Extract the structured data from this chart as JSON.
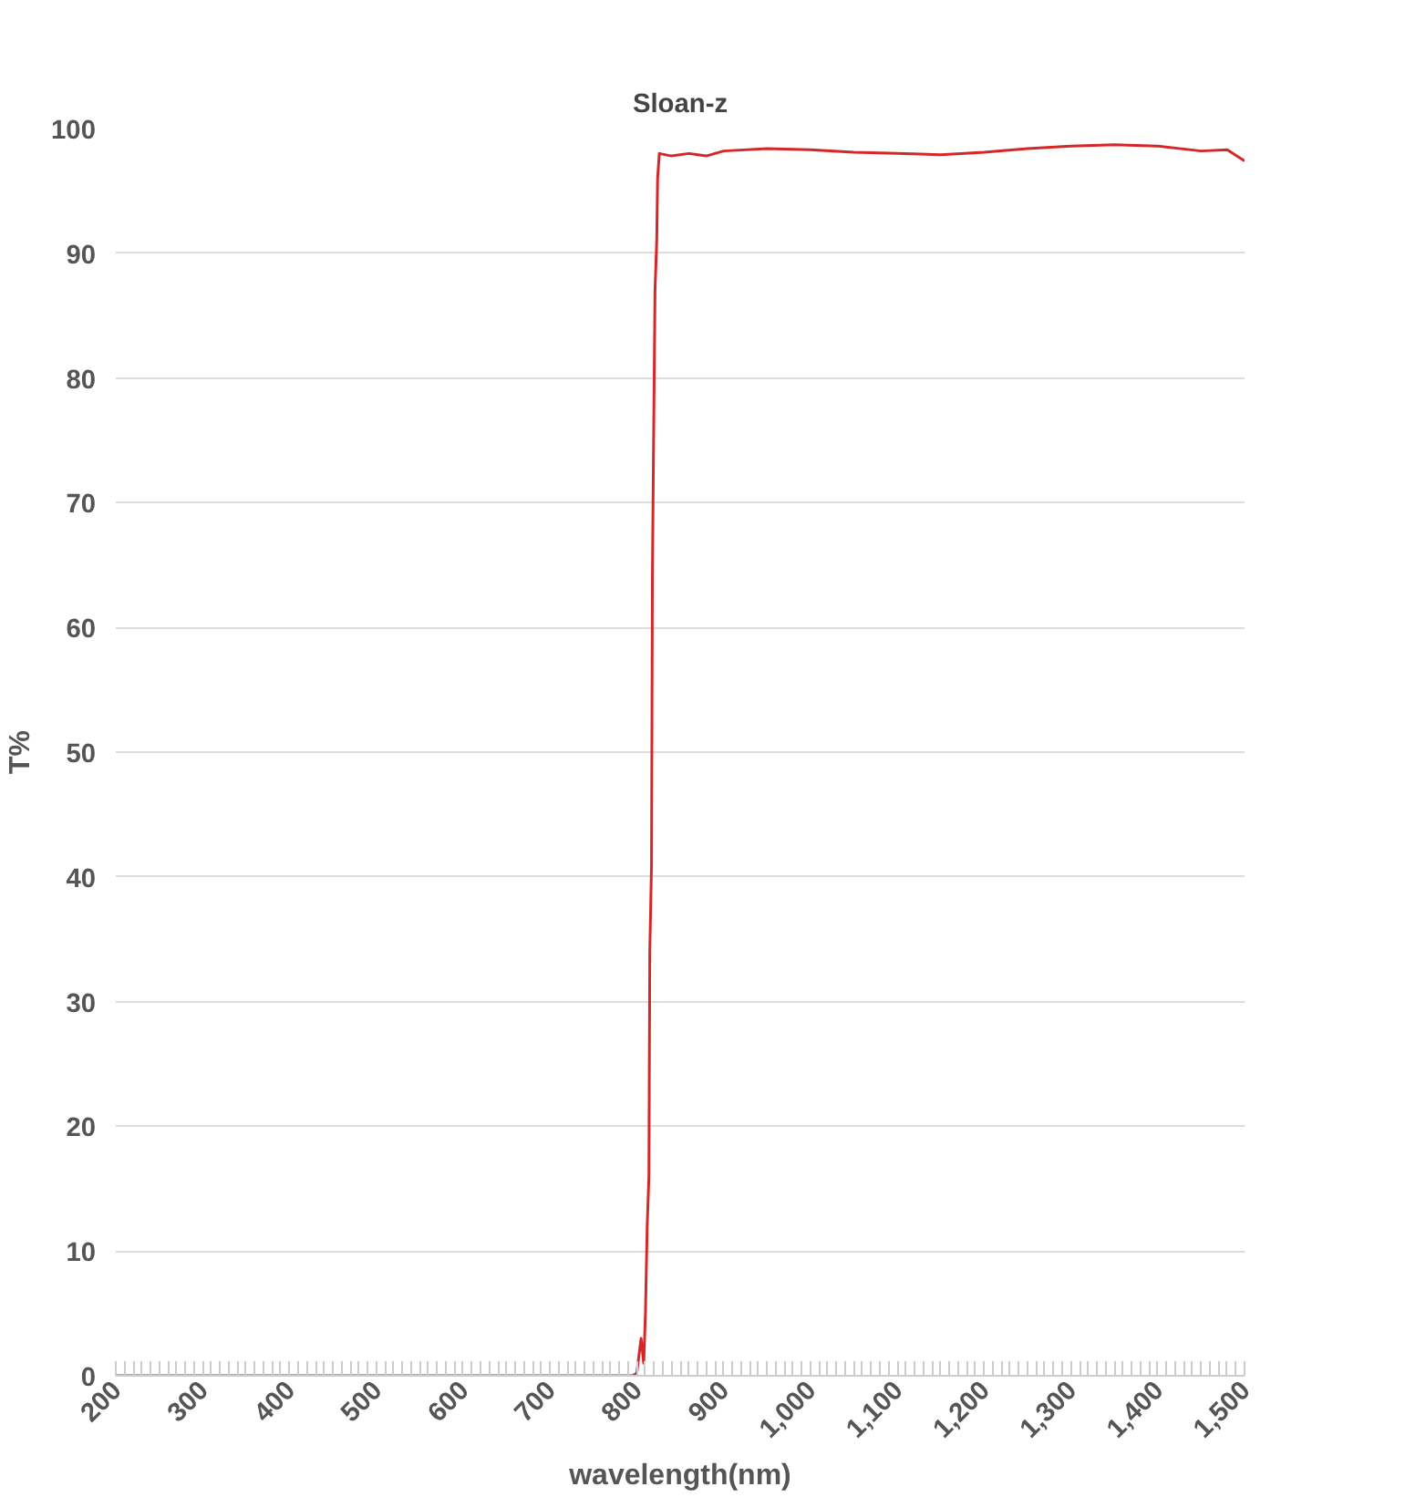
{
  "chart_data": {
    "type": "line",
    "title": "Sloan-z",
    "xlabel": "wavelength(nm)",
    "ylabel": "T%",
    "xlim": [
      200,
      1500
    ],
    "ylim": [
      0,
      100
    ],
    "xticks": [
      200,
      300,
      400,
      500,
      600,
      700,
      800,
      900,
      {
        "value": 1000,
        "label": "1,000"
      },
      {
        "value": 1100,
        "label": "1,100"
      },
      {
        "value": 1200,
        "label": "1,200"
      },
      {
        "value": 1300,
        "label": "1,300"
      },
      {
        "value": 1400,
        "label": "1,400"
      },
      {
        "value": 1500,
        "label": "1,500"
      }
    ],
    "yticks": [
      0,
      10,
      20,
      30,
      40,
      50,
      60,
      70,
      80,
      90,
      100
    ],
    "grid": "y",
    "marker": "none",
    "line_style": "solid",
    "series": [
      {
        "color": "#d62728",
        "x": [
          200,
          795,
          800,
          805,
          808,
          810,
          812,
          814,
          815,
          817,
          818,
          819,
          821,
          823,
          824,
          826,
          840,
          860,
          880,
          900,
          950,
          1000,
          1050,
          1100,
          1150,
          1200,
          1250,
          1300,
          1350,
          1400,
          1450,
          1480,
          1500
        ],
        "values": [
          0,
          0,
          0.2,
          3,
          1,
          5,
          12,
          16,
          34,
          41,
          64,
          72,
          87,
          91,
          96,
          98,
          97.8,
          98,
          97.8,
          98.2,
          98.4,
          98.3,
          98.1,
          98,
          97.9,
          98.1,
          98.4,
          98.6,
          98.7,
          98.6,
          98.2,
          98.3,
          97.4
        ]
      }
    ]
  }
}
